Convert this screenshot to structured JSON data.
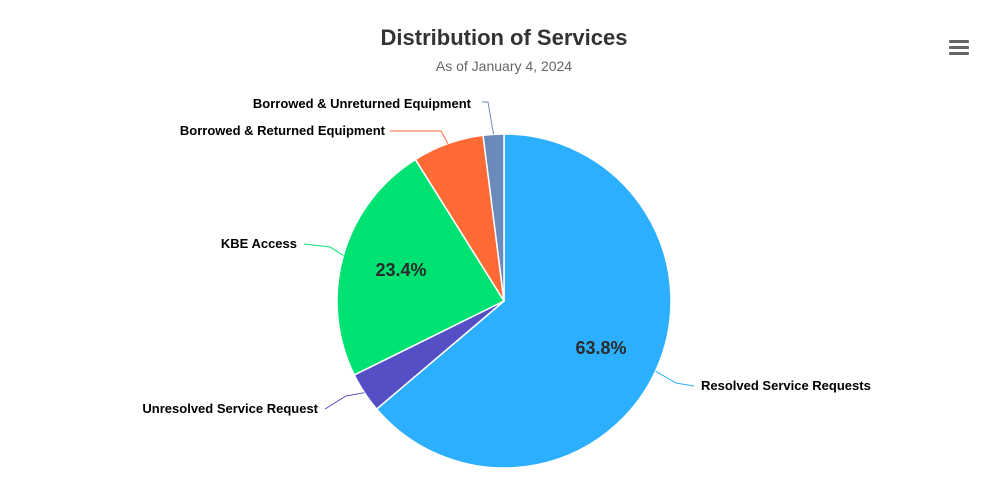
{
  "header": {
    "menu_icon": "hamburger-menu-icon"
  },
  "chart_data": {
    "type": "pie",
    "title": "Distribution of Services",
    "subtitle": "As of January 4, 2024",
    "series": [
      {
        "name": "",
        "slices": [
          {
            "label": "Resolved Service Requests",
            "value": 63.8,
            "color": "#2caffe",
            "data_label": "63.8%"
          },
          {
            "label": "Unresolved Service Request",
            "value": 3.9,
            "color": "#544fc5",
            "data_label": ""
          },
          {
            "label": "KBE Access",
            "value": 23.4,
            "color": "#00e272",
            "data_label": "23.4%"
          },
          {
            "label": "Borrowed & Returned Equipment",
            "value": 6.9,
            "color": "#fe6a35",
            "data_label": ""
          },
          {
            "label": "Borrowed & Unreturned Equipment",
            "value": 2.0,
            "color": "#6b8abc",
            "data_label": ""
          }
        ]
      }
    ],
    "legend": "none",
    "data_labels": "outside-with-connectors"
  }
}
